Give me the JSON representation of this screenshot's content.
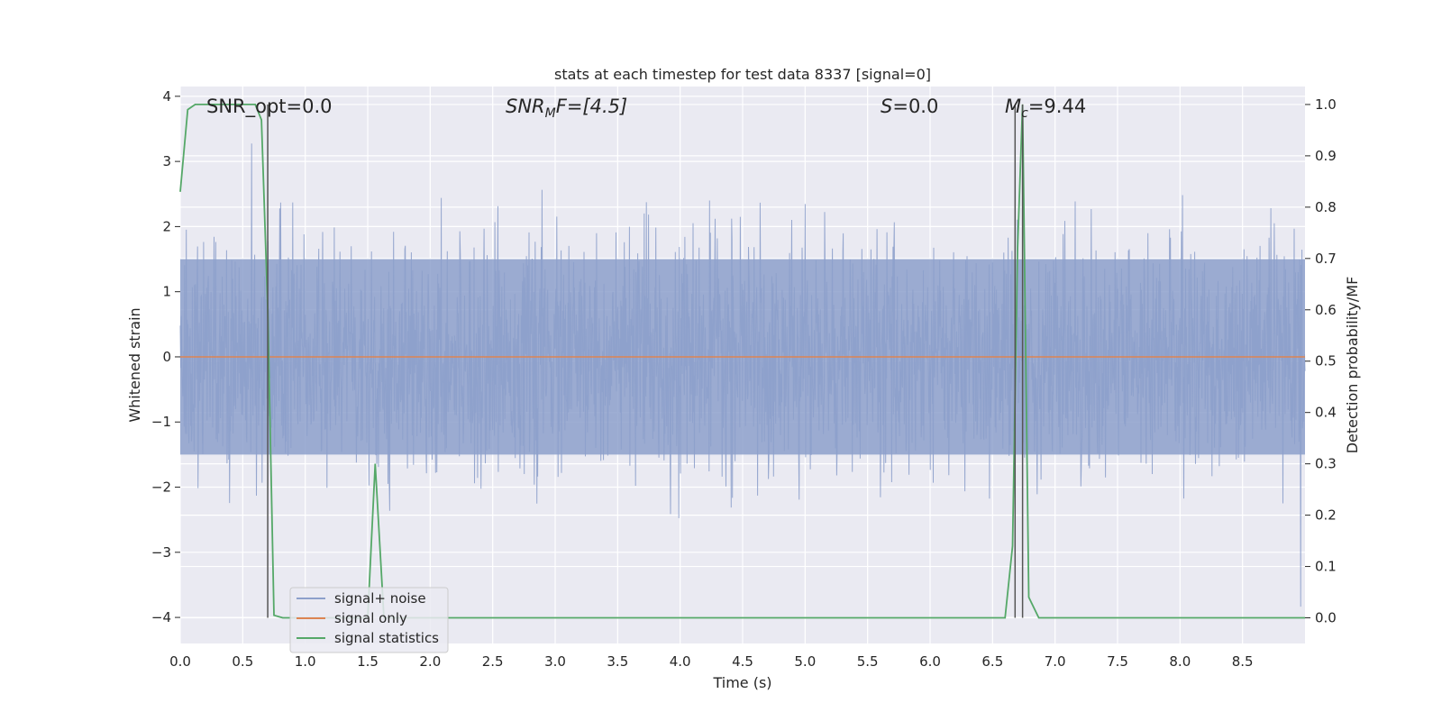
{
  "chart_data": {
    "type": "line",
    "title": "stats at each timestep for test data 8337 [signal=0]",
    "xlabel": "Time (s)",
    "ylabel_left": "Whitened strain",
    "ylabel_right": "Detection probability/MF",
    "xlim": [
      0.0,
      9.0
    ],
    "ylim_left": [
      -4.4,
      4.15
    ],
    "ylim_right": [
      -0.05,
      1.035
    ],
    "x_ticks": [
      "0.0",
      "0.5",
      "1.0",
      "1.5",
      "2.0",
      "2.5",
      "3.0",
      "3.5",
      "4.0",
      "4.5",
      "5.0",
      "5.5",
      "6.0",
      "6.5",
      "7.0",
      "7.5",
      "8.0",
      "8.5"
    ],
    "y_ticks_left": [
      "4",
      "3",
      "2",
      "1",
      "0",
      "−1",
      "−2",
      "−3",
      "−4"
    ],
    "y_ticks_right": [
      "1.0",
      "0.9",
      "0.8",
      "0.7",
      "0.6",
      "0.5",
      "0.4",
      "0.3",
      "0.2",
      "0.1",
      "0.0"
    ],
    "grid": true,
    "background": "#eaeaf2",
    "annotations": {
      "snr_opt": "SNR_opt=0.0",
      "snr_mf_main": "SNR",
      "snr_mf_sub": "M",
      "snr_mf_tail": "F=[4.5]",
      "s_main": "S",
      "s_tail": "=0.0",
      "mc_main": "M",
      "mc_sub": "c",
      "mc_tail": "=9.44"
    },
    "vertical_lines_x": [
      0.7,
      6.68,
      6.74
    ],
    "series": [
      {
        "name": "signal+ noise",
        "axis": "left",
        "color": "#8da0cb",
        "description": "whitened noise, approx. std 0.85, peaks up to ±3.6",
        "envelope_x": [
          0.0,
          9.0
        ],
        "envelope_core": [
          -1.5,
          1.5
        ],
        "envelope_peaks": [
          -4.0,
          3.6
        ]
      },
      {
        "name": "signal only",
        "axis": "left",
        "color": "#dd8452",
        "x": [
          0.0,
          9.0
        ],
        "y": [
          0.0,
          0.0
        ]
      },
      {
        "name": "signal statistics",
        "axis": "right",
        "color": "#55a868",
        "x": [
          0.0,
          0.06,
          0.12,
          0.6,
          0.65,
          0.7,
          0.75,
          0.82,
          1.5,
          1.56,
          1.63,
          1.7,
          6.6,
          6.66,
          6.7,
          6.74,
          6.79,
          6.87,
          7.5,
          9.0
        ],
        "y": [
          0.83,
          0.99,
          1.0,
          1.0,
          0.97,
          0.6,
          0.005,
          0.0,
          0.0,
          0.3,
          0.0,
          0.0,
          0.0,
          0.14,
          0.72,
          1.0,
          0.04,
          0.0,
          0.0,
          0.0
        ]
      }
    ],
    "legend": {
      "placement": "lower-left",
      "entries": [
        "signal+ noise",
        "signal only",
        "signal statistics"
      ]
    }
  }
}
